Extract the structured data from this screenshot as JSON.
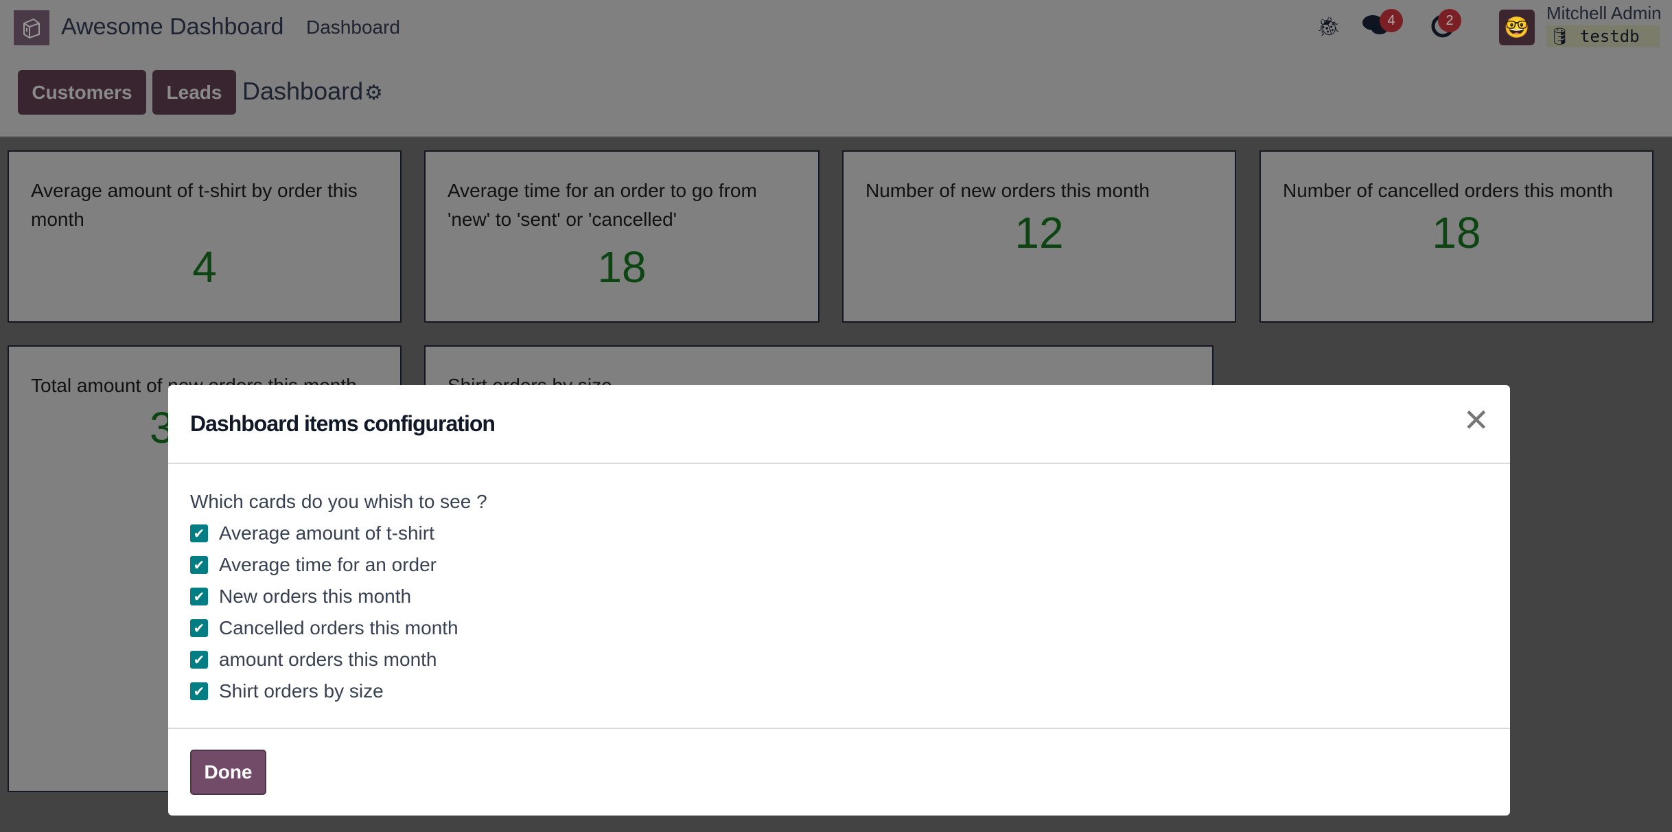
{
  "navbar": {
    "app_name": "Awesome Dashboard",
    "menu_item": "Dashboard",
    "notifications": {
      "messages_count": "4",
      "activities_count": "2"
    },
    "user": {
      "name": "Mitchell Admin",
      "database": "testdb"
    }
  },
  "control_panel": {
    "buttons": [
      {
        "label": "Customers"
      },
      {
        "label": "Leads"
      }
    ],
    "breadcrumb": "Dashboard"
  },
  "cards": [
    {
      "title": "Average amount of t-shirt by order this month",
      "value": "4"
    },
    {
      "title": "Average time for an order to go from 'new' to 'sent' or 'cancelled'",
      "value": "18"
    },
    {
      "title": "Number of new orders this month",
      "value": "12"
    },
    {
      "title": "Number of cancelled orders this month",
      "value": "18"
    },
    {
      "title": "Total amount of new orders this month",
      "value": "3"
    },
    {
      "title": "Shirt orders by size"
    }
  ],
  "modal": {
    "title": "Dashboard items configuration",
    "question": "Which cards do you whish to see ?",
    "options": [
      {
        "label": "Average amount of t-shirt",
        "checked": true
      },
      {
        "label": "Average time for an order",
        "checked": true
      },
      {
        "label": "New orders this month",
        "checked": true
      },
      {
        "label": "Cancelled orders this month",
        "checked": true
      },
      {
        "label": "amount orders this month",
        "checked": true
      },
      {
        "label": "Shirt orders by size",
        "checked": true
      }
    ],
    "done_label": "Done"
  },
  "colors": {
    "primary": "#714b67",
    "checkbox": "#017e84",
    "value_green": "#1b7a24"
  }
}
